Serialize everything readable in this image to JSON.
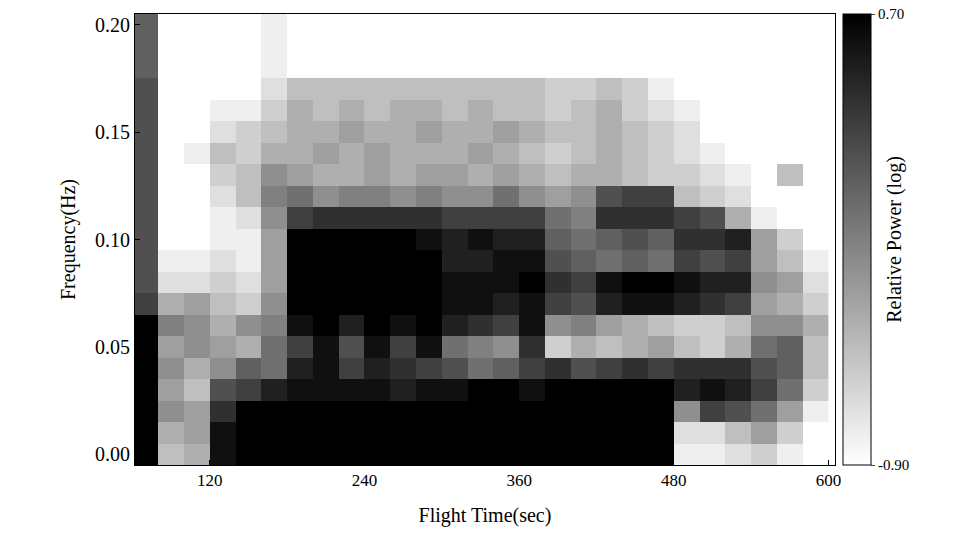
{
  "chart_data": {
    "type": "heatmap",
    "x_label": "Flight Time(sec)",
    "y_label": "Frequency(Hz)",
    "x": [
      70,
      90,
      110,
      130,
      150,
      170,
      190,
      210,
      230,
      250,
      270,
      290,
      310,
      330,
      350,
      370,
      390,
      410,
      430,
      450,
      470,
      490,
      510,
      530,
      550,
      570,
      590
    ],
    "y": [
      0.0,
      0.01,
      0.02,
      0.03,
      0.04,
      0.05,
      0.06,
      0.07,
      0.08,
      0.09,
      0.1,
      0.11,
      0.12,
      0.13,
      0.14,
      0.15,
      0.16,
      0.17,
      0.18,
      0.19,
      0.2
    ],
    "cells": [
      [
        0.7,
        -0.5,
        -0.4,
        0.6,
        0.7,
        0.7,
        0.7,
        0.7,
        0.7,
        0.7,
        0.7,
        0.7,
        0.7,
        0.7,
        0.7,
        0.7,
        0.7,
        0.7,
        0.7,
        0.7,
        0.7,
        -0.8,
        -0.8,
        -0.7,
        -0.6,
        -0.8,
        -0.9
      ],
      [
        0.7,
        -0.4,
        -0.3,
        0.6,
        0.7,
        0.7,
        0.7,
        0.7,
        0.7,
        0.7,
        0.7,
        0.7,
        0.7,
        0.7,
        0.7,
        0.7,
        0.7,
        0.7,
        0.7,
        0.7,
        0.7,
        -0.7,
        -0.7,
        -0.5,
        -0.3,
        -0.6,
        -0.9
      ],
      [
        0.7,
        -0.2,
        -0.3,
        0.4,
        0.7,
        0.7,
        0.7,
        0.7,
        0.7,
        0.7,
        0.7,
        0.7,
        0.7,
        0.7,
        0.7,
        0.7,
        0.7,
        0.7,
        0.7,
        0.7,
        0.7,
        -0.2,
        0.3,
        0.2,
        0.0,
        -0.3,
        -0.8
      ],
      [
        0.7,
        -0.3,
        -0.5,
        0.2,
        0.3,
        0.5,
        0.6,
        0.6,
        0.6,
        0.6,
        0.5,
        0.6,
        0.6,
        0.7,
        0.7,
        0.6,
        0.7,
        0.7,
        0.7,
        0.7,
        0.7,
        0.5,
        0.6,
        0.5,
        0.3,
        0.0,
        -0.6
      ],
      [
        0.7,
        -0.2,
        -0.4,
        -0.2,
        0.1,
        0.0,
        0.5,
        0.6,
        0.3,
        0.5,
        0.4,
        0.3,
        0.2,
        0.0,
        0.1,
        0.3,
        0.4,
        0.2,
        0.3,
        0.4,
        0.3,
        0.4,
        0.4,
        0.4,
        0.2,
        0.1,
        -0.5
      ],
      [
        0.7,
        -0.3,
        -0.2,
        -0.3,
        -0.4,
        0.0,
        0.3,
        0.6,
        0.2,
        0.6,
        0.3,
        0.6,
        0.0,
        -0.1,
        -0.2,
        0.4,
        -0.6,
        -0.4,
        -0.5,
        -0.4,
        -0.3,
        -0.5,
        -0.6,
        -0.4,
        0.0,
        0.1,
        -0.5
      ],
      [
        0.7,
        -0.1,
        -0.2,
        -0.4,
        -0.2,
        -0.1,
        0.6,
        0.7,
        0.5,
        0.7,
        0.6,
        0.7,
        0.5,
        0.4,
        0.3,
        0.6,
        -0.2,
        -0.1,
        -0.3,
        -0.4,
        -0.5,
        -0.6,
        -0.6,
        -0.5,
        -0.2,
        -0.2,
        -0.4
      ],
      [
        0.3,
        -0.4,
        -0.3,
        -0.5,
        -0.6,
        -0.2,
        0.7,
        0.7,
        0.7,
        0.7,
        0.7,
        0.7,
        0.6,
        0.6,
        0.5,
        0.6,
        0.3,
        0.2,
        0.5,
        0.6,
        0.6,
        0.5,
        0.4,
        0.3,
        -0.3,
        -0.4,
        -0.6
      ],
      [
        0.2,
        -0.7,
        -0.7,
        -0.6,
        -0.7,
        -0.3,
        0.7,
        0.7,
        0.7,
        0.7,
        0.7,
        0.7,
        0.6,
        0.6,
        0.6,
        0.7,
        0.4,
        0.3,
        0.6,
        0.7,
        0.7,
        0.6,
        0.5,
        0.5,
        -0.2,
        -0.3,
        -0.7
      ],
      [
        0.2,
        -0.8,
        -0.8,
        -0.7,
        -0.8,
        -0.3,
        0.7,
        0.7,
        0.7,
        0.7,
        0.7,
        0.7,
        0.5,
        0.5,
        0.6,
        0.6,
        0.2,
        0.1,
        0.0,
        0.1,
        0.0,
        0.3,
        0.2,
        0.3,
        -0.3,
        -0.5,
        -0.8
      ],
      [
        0.2,
        -0.9,
        -0.9,
        -0.8,
        -0.8,
        -0.3,
        0.7,
        0.7,
        0.7,
        0.7,
        0.7,
        0.6,
        0.5,
        0.6,
        0.5,
        0.5,
        0.1,
        0.0,
        0.1,
        0.2,
        0.1,
        0.4,
        0.4,
        0.5,
        -0.3,
        -0.6,
        -0.9
      ],
      [
        0.2,
        -0.9,
        -0.9,
        -0.8,
        -0.7,
        -0.2,
        0.3,
        0.4,
        0.4,
        0.4,
        0.4,
        0.4,
        0.3,
        0.3,
        0.3,
        0.3,
        0.0,
        -0.1,
        0.4,
        0.4,
        0.4,
        0.3,
        0.2,
        -0.4,
        -0.8,
        -0.9,
        -0.9
      ],
      [
        0.2,
        -0.9,
        -0.9,
        -0.7,
        -0.5,
        -0.1,
        0.0,
        -0.2,
        -0.1,
        -0.1,
        -0.2,
        -0.1,
        -0.2,
        -0.2,
        0.0,
        -0.2,
        -0.3,
        -0.2,
        0.2,
        0.3,
        0.3,
        -0.5,
        -0.6,
        -0.7,
        -0.9,
        -0.9,
        -0.9
      ],
      [
        0.2,
        -0.9,
        -0.9,
        -0.6,
        -0.5,
        -0.2,
        -0.3,
        -0.4,
        -0.4,
        -0.3,
        -0.4,
        -0.3,
        -0.3,
        -0.4,
        -0.3,
        -0.4,
        -0.5,
        -0.4,
        -0.4,
        -0.5,
        -0.6,
        -0.6,
        -0.7,
        -0.8,
        -0.9,
        -0.5,
        -0.9
      ],
      [
        0.2,
        -0.9,
        -0.8,
        -0.5,
        -0.6,
        -0.4,
        -0.4,
        -0.3,
        -0.4,
        -0.3,
        -0.4,
        -0.4,
        -0.4,
        -0.3,
        -0.4,
        -0.5,
        -0.6,
        -0.5,
        -0.4,
        -0.5,
        -0.6,
        -0.7,
        -0.8,
        -0.9,
        -0.9,
        -0.9,
        -0.9
      ],
      [
        0.2,
        -0.9,
        -0.9,
        -0.7,
        -0.6,
        -0.5,
        -0.4,
        -0.4,
        -0.3,
        -0.4,
        -0.4,
        -0.3,
        -0.4,
        -0.4,
        -0.3,
        -0.4,
        -0.5,
        -0.5,
        -0.4,
        -0.5,
        -0.6,
        -0.7,
        -0.9,
        -0.9,
        -0.9,
        -0.9,
        -0.9
      ],
      [
        0.2,
        -0.9,
        -0.9,
        -0.8,
        -0.8,
        -0.6,
        -0.4,
        -0.5,
        -0.4,
        -0.5,
        -0.4,
        -0.4,
        -0.5,
        -0.4,
        -0.5,
        -0.5,
        -0.6,
        -0.5,
        -0.4,
        -0.6,
        -0.7,
        -0.8,
        -0.9,
        -0.9,
        -0.9,
        -0.9,
        -0.9
      ],
      [
        0.2,
        -0.9,
        -0.9,
        -0.9,
        -0.9,
        -0.7,
        -0.5,
        -0.5,
        -0.5,
        -0.5,
        -0.5,
        -0.5,
        -0.5,
        -0.5,
        -0.5,
        -0.5,
        -0.6,
        -0.6,
        -0.5,
        -0.6,
        -0.8,
        -0.9,
        -0.9,
        -0.9,
        -0.9,
        -0.9,
        -0.9
      ],
      [
        0.1,
        -0.9,
        -0.9,
        -0.9,
        -0.9,
        -0.8,
        -0.9,
        -0.9,
        -0.9,
        -0.9,
        -0.9,
        -0.9,
        -0.9,
        -0.9,
        -0.9,
        -0.9,
        -0.9,
        -0.9,
        -0.9,
        -0.9,
        -0.9,
        -0.9,
        -0.9,
        -0.9,
        -0.9,
        -0.9,
        -0.9
      ],
      [
        0.1,
        -0.9,
        -0.9,
        -0.9,
        -0.9,
        -0.8,
        -0.9,
        -0.9,
        -0.9,
        -0.9,
        -0.9,
        -0.9,
        -0.9,
        -0.9,
        -0.9,
        -0.9,
        -0.9,
        -0.9,
        -0.9,
        -0.9,
        -0.9,
        -0.9,
        -0.9,
        -0.9,
        -0.9,
        -0.9,
        -0.9
      ],
      [
        0.1,
        -0.9,
        -0.9,
        -0.9,
        -0.9,
        -0.8,
        -0.9,
        -0.9,
        -0.9,
        -0.9,
        -0.9,
        -0.9,
        -0.9,
        -0.9,
        -0.9,
        -0.9,
        -0.9,
        -0.9,
        -0.9,
        -0.9,
        -0.9,
        -0.9,
        -0.9,
        -0.9,
        -0.9,
        -0.9,
        -0.9
      ]
    ],
    "xlim": [
      62,
      605
    ],
    "xticks": [
      120,
      240,
      360,
      480,
      600
    ],
    "ylim": [
      -0.005,
      0.205
    ],
    "yticks": [
      {
        "value": 0,
        "label": "0.00"
      },
      {
        "value": 0.05,
        "label": "0.05"
      },
      {
        "value": 0.1,
        "label": "0.10"
      },
      {
        "value": 0.15,
        "label": "0.15"
      },
      {
        "value": 0.2,
        "label": "0.20"
      }
    ],
    "colorbar_title": "Relative Power (log)",
    "colorbar_range": [
      -0.9,
      0.7
    ],
    "colorbar_ticks": [
      {
        "value": 0.7,
        "label": "0.70"
      },
      {
        "value": -0.9,
        "label": "-0.90"
      }
    ],
    "grid": false
  }
}
